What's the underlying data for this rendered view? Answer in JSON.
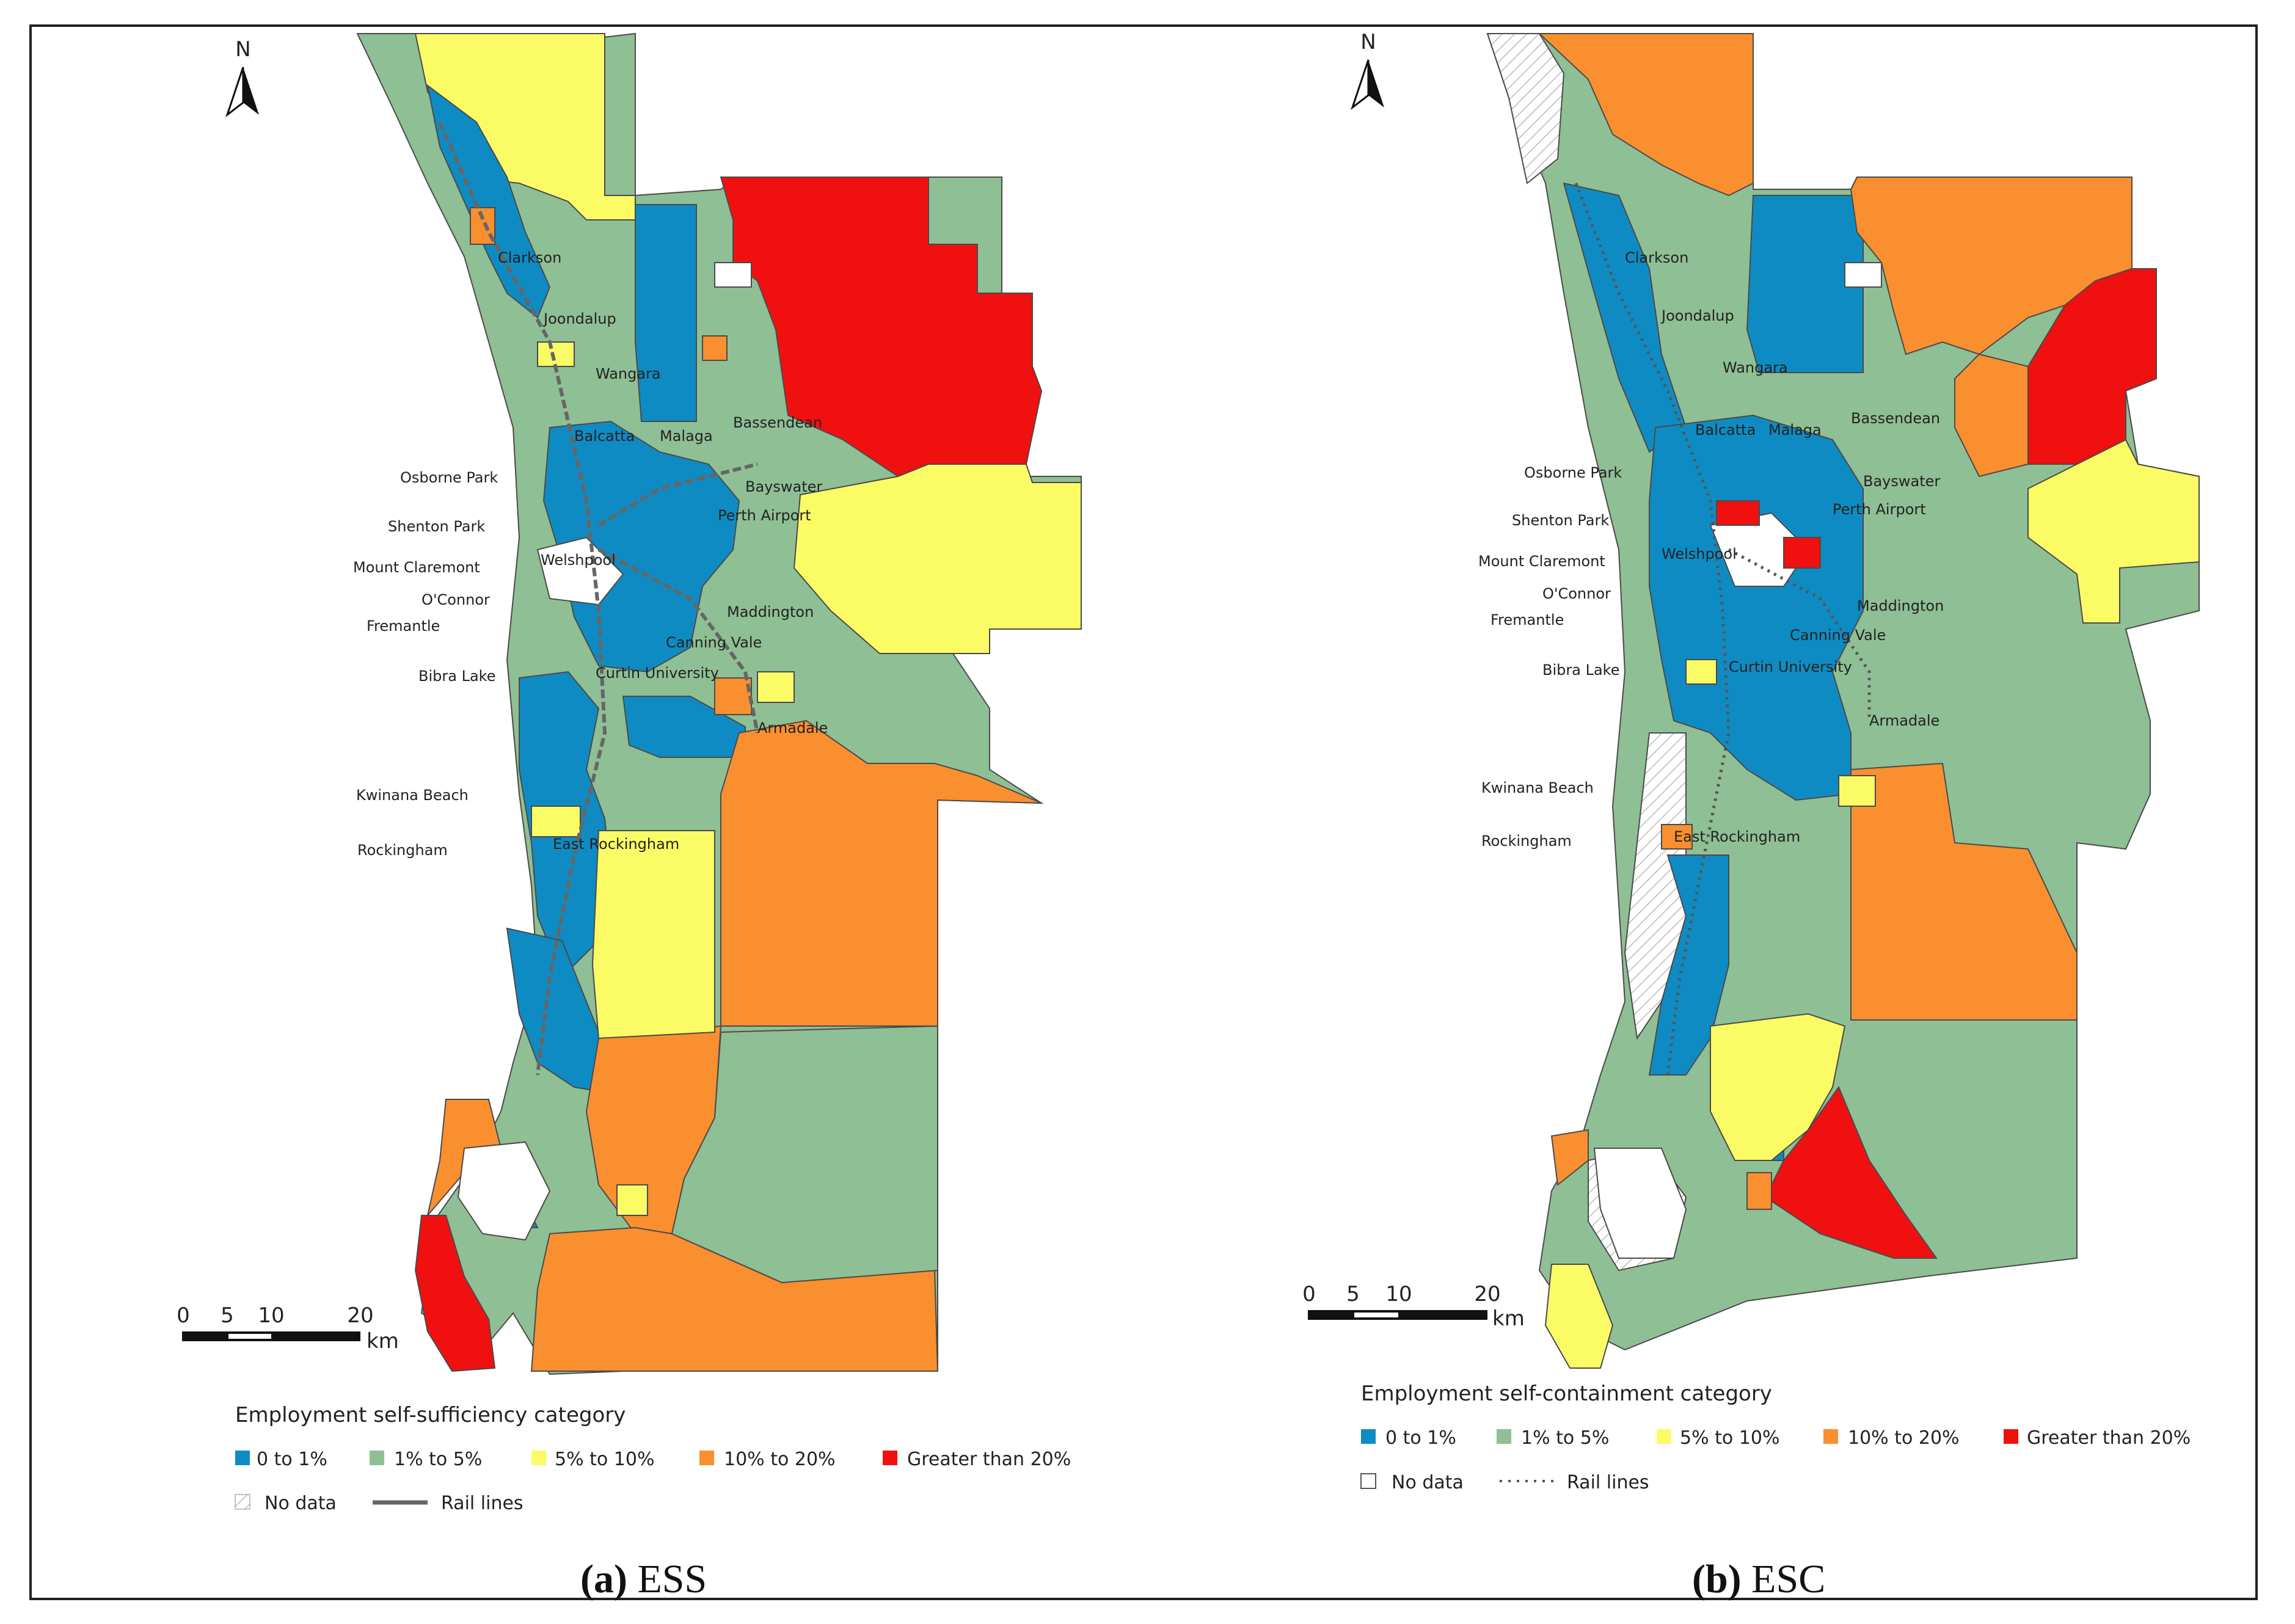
{
  "colors": {
    "c1": "#0f8bc3",
    "c2": "#8fbf94",
    "c3": "#fbfb66",
    "c4": "#fa8f30",
    "c5": "#f01010",
    "nodata": "#ffffff",
    "rail": "#666666",
    "boundary": "#4a4a4a"
  },
  "panels": [
    {
      "id": "a",
      "caption_letter": "(a)",
      "caption_text": "ESS",
      "north_label": "N",
      "scale": {
        "ticks": [
          "0",
          "5",
          "10",
          "20"
        ],
        "unit": "km"
      },
      "legend": {
        "title": "Employment self-sufficiency category",
        "items": [
          {
            "label": "0 to 1%",
            "color": "c1"
          },
          {
            "label": "1% to 5%",
            "color": "c2"
          },
          {
            "label": "5% to 10%",
            "color": "c3"
          },
          {
            "label": "10% to 20%",
            "color": "c4"
          },
          {
            "label": "Greater than 20%",
            "color": "c5"
          }
        ],
        "nodata_label": "No data",
        "rail_label": "Rail lines"
      },
      "places": [
        "Clarkson",
        "Joondalup",
        "Wangara",
        "Balcatta",
        "Malaga",
        "Bassendean",
        "Osborne Park",
        "Bayswater",
        "Shenton Park",
        "Perth Airport",
        "Mount Claremont",
        "Welshpool",
        "O'Connor",
        "Maddington",
        "Fremantle",
        "Canning Vale",
        "Bibra Lake",
        "Curtin University",
        "Armadale",
        "Kwinana Beach",
        "East Rockingham",
        "Rockingham"
      ]
    },
    {
      "id": "b",
      "caption_letter": "(b)",
      "caption_text": "ESC",
      "north_label": "N",
      "scale": {
        "ticks": [
          "0",
          "5",
          "10",
          "20"
        ],
        "unit": "km"
      },
      "legend": {
        "title": "Employment self-containment category",
        "items": [
          {
            "label": "0 to 1%",
            "color": "c1"
          },
          {
            "label": "1% to 5%",
            "color": "c2"
          },
          {
            "label": "5% to 10%",
            "color": "c3"
          },
          {
            "label": "10% to 20%",
            "color": "c4"
          },
          {
            "label": "Greater than 20%",
            "color": "c5"
          }
        ],
        "nodata_label": "No data",
        "rail_label": "Rail lines"
      },
      "places": [
        "Clarkson",
        "Joondalup",
        "Wangara",
        "Balcatta",
        "Malaga",
        "Bassendean",
        "Osborne Park",
        "Bayswater",
        "Shenton Park",
        "Perth Airport",
        "Mount Claremont",
        "Welshpool",
        "O'Connor",
        "Maddington",
        "Fremantle",
        "Canning Vale",
        "Bibra Lake",
        "Curtin University",
        "Armadale",
        "Kwinana Beach",
        "East Rockingham",
        "Rockingham"
      ]
    }
  ]
}
